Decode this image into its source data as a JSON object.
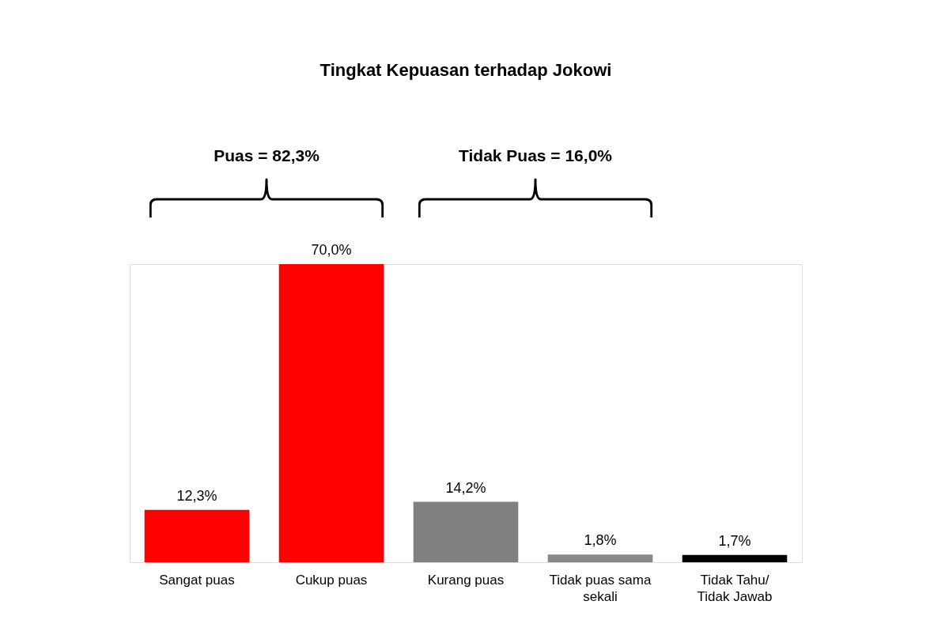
{
  "chart_data": {
    "type": "bar",
    "title": "Tingkat Kepuasan terhadap Jokowi",
    "categories": [
      "Sangat puas",
      "Cukup puas",
      "Kurang puas",
      "Tidak puas sama\nsekali",
      "Tidak Tahu/\nTidak Jawab"
    ],
    "values": [
      12.3,
      70.0,
      14.2,
      1.8,
      1.7
    ],
    "colors": [
      "#fe0000",
      "#fe0000",
      "#808080",
      "#898989",
      "#000000"
    ],
    "value_labels": [
      "12,3%",
      "70,0%",
      "14,2%",
      "1,8%",
      "1,7%"
    ],
    "annotations": [
      "Puas = 82,3%",
      "Tidak Puas = 16,0%"
    ],
    "tick_labels": "x"
  }
}
